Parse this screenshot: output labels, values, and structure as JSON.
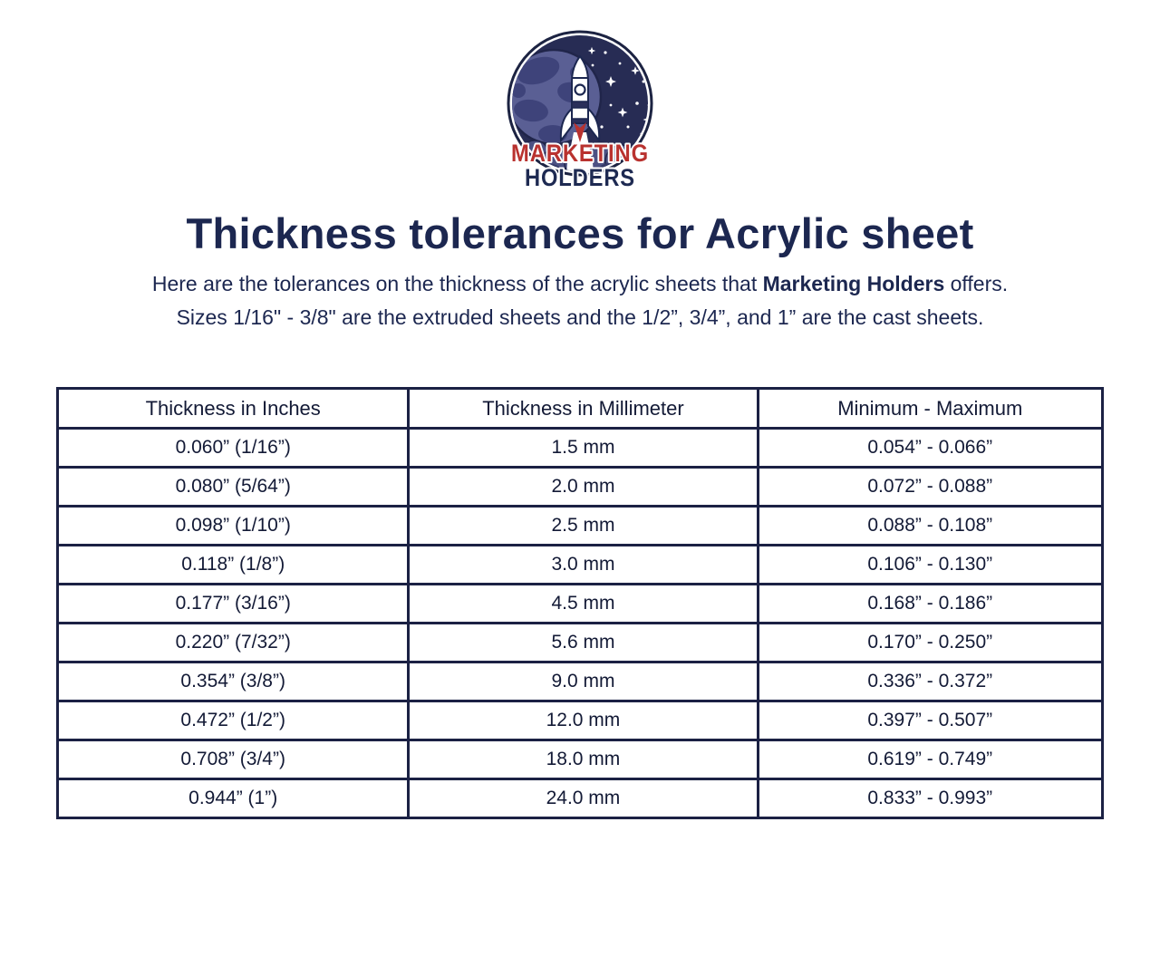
{
  "logo": {
    "line1": "MARKETING",
    "line2": "HOLDERS"
  },
  "title": "Thickness tolerances for Acrylic sheet",
  "subtitle": {
    "line1_prefix": "Here are the tolerances on the thickness of the acrylic sheets that ",
    "line1_bold": "Marketing Holders",
    "line1_suffix": " offers.",
    "line2": "Sizes 1/16\" - 3/8\" are the extruded sheets and the 1/2”, 3/4”, and 1” are the cast sheets."
  },
  "table": {
    "headers": [
      "Thickness in Inches",
      "Thickness in Millimeter",
      "Minimum - Maximum"
    ],
    "rows": [
      [
        "0.060” (1/16”)",
        "1.5 mm",
        "0.054” - 0.066”"
      ],
      [
        "0.080” (5/64”)",
        "2.0 mm",
        "0.072” - 0.088”"
      ],
      [
        "0.098” (1/10”)",
        "2.5 mm",
        "0.088” - 0.108”"
      ],
      [
        "0.118” (1/8”)",
        "3.0 mm",
        "0.106” - 0.130”"
      ],
      [
        "0.177” (3/16”)",
        "4.5 mm",
        "0.168” - 0.186”"
      ],
      [
        "0.220” (7/32”)",
        "5.6 mm",
        "0.170” - 0.250”"
      ],
      [
        "0.354” (3/8”)",
        "9.0 mm",
        "0.336” - 0.372”"
      ],
      [
        "0.472” (1/2”)",
        "12.0 mm",
        "0.397” - 0.507”"
      ],
      [
        "0.708” (3/4”)",
        "18.0 mm",
        "0.619” - 0.749”"
      ],
      [
        "0.944” (1”)",
        "24.0 mm",
        "0.833” - 0.993”"
      ]
    ]
  },
  "colors": {
    "text_navy": "#1c2750",
    "table_border": "#1b2144",
    "table_text": "#131a36",
    "logo_red": "#b9322f",
    "logo_space": "#272c54",
    "logo_planet": "#5a5f94",
    "logo_planet_land": "#3e437a",
    "logo_cloud": "#4c5183",
    "logo_cloud_dark": "#353a68",
    "background": "#ffffff"
  }
}
